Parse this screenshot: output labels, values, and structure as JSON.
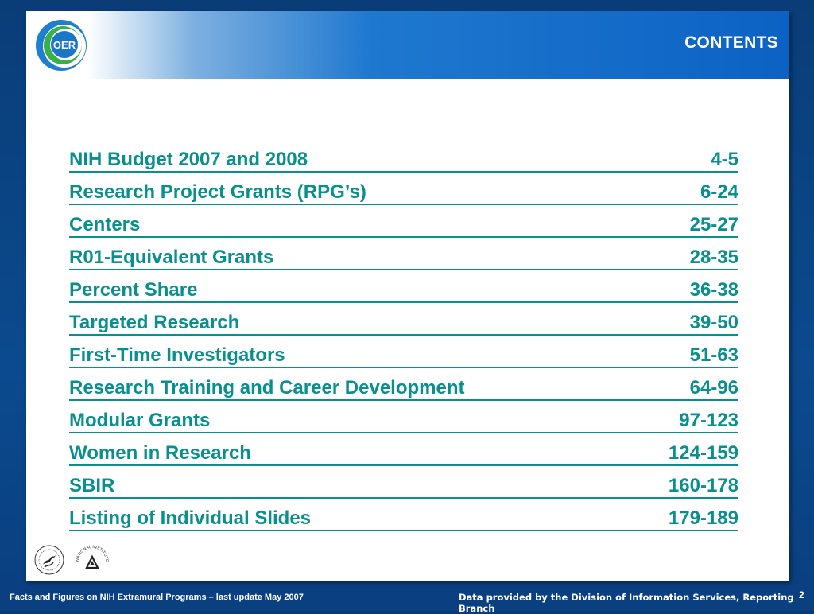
{
  "header": {
    "logo_text": "OER",
    "title": "CONTENTS"
  },
  "toc": [
    {
      "label": "NIH Budget 2007 and 2008",
      "pages": "4-5"
    },
    {
      "label": "Research Project Grants (RPG’s)",
      "pages": "6-24"
    },
    {
      "label": "Centers",
      "pages": "25-27"
    },
    {
      "label": "R01-Equivalent Grants",
      "pages": "28-35"
    },
    {
      "label": "Percent Share",
      "pages": "36-38"
    },
    {
      "label": "Targeted Research",
      "pages": "39-50"
    },
    {
      "label": "First-Time Investigators",
      "pages": "51-63"
    },
    {
      "label": "Research Training and Career Development",
      "pages": "64-96"
    },
    {
      "label": "Modular Grants",
      "pages": "97-123"
    },
    {
      "label": "Women in Research",
      "pages": "124-159"
    },
    {
      "label": "SBIR",
      "pages": "160-178"
    },
    {
      "label": "Listing of Individual Slides",
      "pages": "179-189"
    }
  ],
  "seals": {
    "nih_text": "NATIONAL INSTITUTES OF HEALTH"
  },
  "footer": {
    "left": "Facts and Figures on NIH Extramural Programs – last update May 2007",
    "right": "Data provided by the Division of Information Services, Reporting Branch",
    "page_number": "2"
  },
  "colors": {
    "link": "#0a8f8f",
    "header_blue": "#0c62c4",
    "background": "#0b4a8e"
  }
}
